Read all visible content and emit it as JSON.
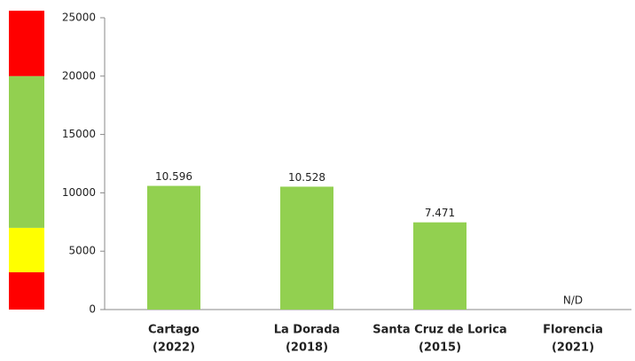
{
  "chart_data": {
    "type": "bar",
    "categories": [
      [
        "Cartago",
        "(2022)"
      ],
      [
        "La Dorada",
        "(2018)"
      ],
      [
        "Santa Cruz de Lorica",
        "(2015)"
      ],
      [
        "Florencia",
        "(2021)"
      ]
    ],
    "values": [
      10596,
      10528,
      7471,
      null
    ],
    "value_labels": [
      "10.596",
      "10.528",
      "7.471",
      "N/D"
    ],
    "color": "#92d050",
    "ylim": [
      0,
      25000
    ],
    "yticks": [
      0,
      5000,
      10000,
      15000,
      20000,
      25000
    ],
    "bands": [
      {
        "from": 0,
        "to": 3200,
        "color": "#ff0000"
      },
      {
        "from": 3200,
        "to": 7000,
        "color": "#ffff00"
      },
      {
        "from": 7000,
        "to": 20000,
        "color": "#92d050"
      },
      {
        "from": 20000,
        "to": 25600,
        "color": "#ff0000"
      }
    ]
  }
}
